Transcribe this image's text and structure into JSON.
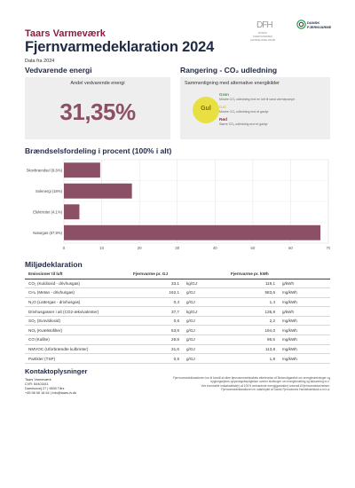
{
  "header": {
    "company": "Taars Varmeværk",
    "title": "Fjernvarmedeklaration 2024",
    "data_year": "Data fra 2024",
    "logo_dfh_text": "DANSK FJERNVARMES HANDELSSELSKAB",
    "logo_df_text_line1": "DANSK",
    "logo_df_text_line2": "FJERNVARME"
  },
  "vedvarende": {
    "section_title": "Vedvarende energi",
    "label": "Andel vedvarende energi",
    "value": "31,35%"
  },
  "rangering": {
    "section_title": "Rangering - CO₂ udledning",
    "label": "Sammenligning med alternative energikilder",
    "badge": "Gul",
    "badge_color": "#e8e043",
    "levels": [
      {
        "name": "Grøn",
        "color": "#3aa845",
        "desc": "Mindre CO₂ udledning end en luft til vand varmepumpe"
      },
      {
        "name": "Gul",
        "color": "#d9cf2a",
        "desc": "Mindre CO₂ udledning end et gasfyr"
      },
      {
        "name": "Rød",
        "color": "#b0183a",
        "desc": "Større CO₂ udledning end et gasfyr"
      }
    ]
  },
  "brandsel": {
    "section_title": "Brændselsfordeling i procent (100% i alt)"
  },
  "chart_data": {
    "type": "bar",
    "orientation": "horizontal",
    "categories": [
      "Skovbrændsel (9,6%)",
      "Solenergi (18%)",
      "Elektricitet (4,1%)",
      "Naturgas (67,9%)"
    ],
    "values": [
      9.6,
      18.0,
      4.1,
      67.9
    ],
    "xlim": [
      0,
      70
    ],
    "xticks": [
      "0",
      "10",
      "20",
      "30",
      "40",
      "50",
      "60",
      "70"
    ],
    "bar_color": "#8b4f66",
    "grid": true
  },
  "miljo": {
    "section_title": "Miljødeklaration",
    "headers": [
      "Emissioner til luft",
      "Fjernvarme pr. GJ",
      "",
      "Fjernvarme pr. kWh",
      ""
    ],
    "rows": [
      [
        "CO₂ (Kuldioxid - drivhusgas)",
        "33,1",
        "kg/GJ",
        "119,1",
        "g/kWh"
      ],
      [
        "CH₄ (Metan - drivhusgas)",
        "162,1",
        "g/GJ",
        "583,6",
        "mg/kWh"
      ],
      [
        "N₂O (Lattergas - drivhusgas)",
        "0,4",
        "g/GJ",
        "1,4",
        "mg/kWh"
      ],
      [
        "Drivhusgasser i alt (CO2-ækvivalenter)",
        "37,7",
        "kg/GJ",
        "135,8",
        "g/kWh"
      ],
      [
        "SO₂ (Svovldioxid)",
        "0,6",
        "g/GJ",
        "2,2",
        "mg/kWh"
      ],
      [
        "NOₓ (Kvælstofilter)",
        "53,9",
        "g/GJ",
        "194,0",
        "mg/kWh"
      ],
      [
        "CO (Kulilte)",
        "26,8",
        "g/GJ",
        "96,5",
        "mg/kWh"
      ],
      [
        "NMVOC (Uforbrændte kulbrinter)",
        "31,6",
        "g/GJ",
        "113,8",
        "mg/kWh"
      ],
      [
        "Partikler (TSP)",
        "0,5",
        "g/GJ",
        "1,8",
        "mg/kWh"
      ]
    ]
  },
  "kontakt": {
    "section_title": "Kontaktoplysninger",
    "lines": [
      "Taars Varmeværk",
      "CVR: 84403411",
      "Damhusvej 27 | 9830 Tårs",
      "+45 98 96 18 64 | info@taars-fv.dk"
    ],
    "disclaimer": [
      "Fjernvarmedeklarationen har til formål at sikre fjernvarmeselskabets efterlevelse af 'Bekendtgørelse om energimærkninger og",
      "bygningsejeres oplysningsforpligtelser overfor slutbruger om energifordeling og fakturering m.v.'",
      "Ved eventuelle indkøbsaftale(r) af 100% vedvarende energi(garantier) anvendt til fjernvarmedannelsen.",
      "Fjernvarmedeklarationen er udarbejdet af Dansk Fjernvarmes Handelsselskab a.m.b.a."
    ]
  }
}
